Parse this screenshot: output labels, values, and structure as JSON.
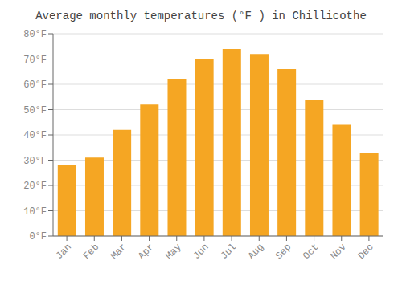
{
  "chart_data": {
    "type": "bar",
    "title": "Average monthly temperatures (°F ) in Chillicothe",
    "categories": [
      "Jan",
      "Feb",
      "Mar",
      "Apr",
      "May",
      "Jun",
      "Jul",
      "Aug",
      "Sep",
      "Oct",
      "Nov",
      "Dec"
    ],
    "values": [
      28,
      31,
      42,
      52,
      62,
      70,
      74,
      72,
      66,
      54,
      44,
      33
    ],
    "color": "#F5A623",
    "ylim": [
      0,
      80
    ],
    "yticks": [
      {
        "value": 0,
        "label": "0°F"
      },
      {
        "value": 10,
        "label": "10°F"
      },
      {
        "value": 20,
        "label": "20°F"
      },
      {
        "value": 30,
        "label": "30°F"
      },
      {
        "value": 40,
        "label": "40°F"
      },
      {
        "value": 50,
        "label": "50°F"
      },
      {
        "value": 60,
        "label": "60°F"
      },
      {
        "value": 70,
        "label": "70°F"
      },
      {
        "value": 80,
        "label": "80°F"
      }
    ],
    "grid": true
  }
}
